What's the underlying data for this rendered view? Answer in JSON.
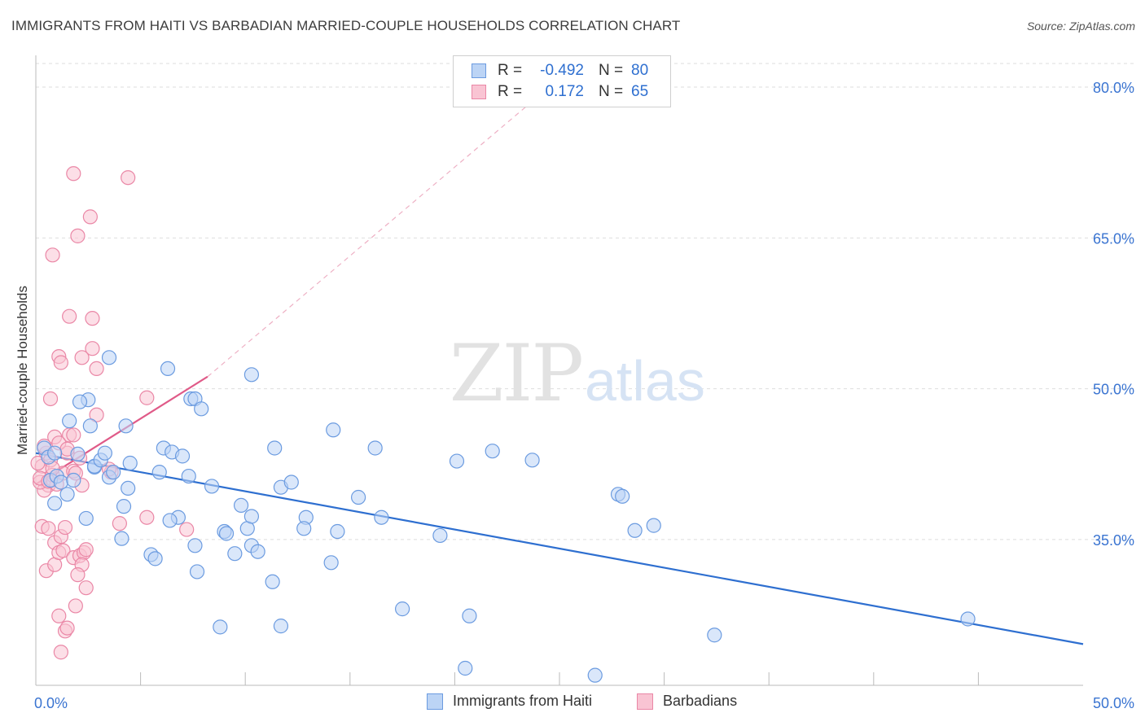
{
  "title": "IMMIGRANTS FROM HAITI VS BARBADIAN MARRIED-COUPLE HOUSEHOLDS CORRELATION CHART",
  "source": "Source: ZipAtlas.com",
  "watermark": {
    "zip": "ZIP",
    "atlas": "atlas"
  },
  "legend": {
    "rows": [
      {
        "r_label": "R =",
        "r_value": "-0.492",
        "n_label": "N =",
        "n_value": "80",
        "fill": "#bcd4f5",
        "stroke": "#6b9be0"
      },
      {
        "r_label": "R =",
        "r_value": "0.172",
        "n_label": "N =",
        "n_value": "65",
        "fill": "#f9c4d3",
        "stroke": "#ea87a6"
      }
    ]
  },
  "bottom_legend": [
    "Immigrants from Haiti",
    "Barbadians"
  ],
  "chart_data": {
    "type": "scatter",
    "title": "IMMIGRANTS FROM HAITI VS BARBADIAN MARRIED-COUPLE HOUSEHOLDS CORRELATION CHART",
    "xlabel": "",
    "ylabel": "Married-couple Households",
    "xlim": [
      0,
      50
    ],
    "ylim": [
      20.5,
      83
    ],
    "x_tick_labels": [
      {
        "value": 0,
        "label": "0.0%"
      },
      {
        "value": 50,
        "label": "50.0%"
      }
    ],
    "y_tick_labels": [
      {
        "value": 35,
        "label": "35.0%"
      },
      {
        "value": 50,
        "label": "50.0%"
      },
      {
        "value": 65,
        "label": "65.0%"
      },
      {
        "value": 80,
        "label": "80.0%"
      }
    ],
    "x_minor_ticks": [
      5,
      10,
      15,
      20,
      25,
      30,
      35,
      40,
      45
    ],
    "grid": true,
    "legend_position": "top-center",
    "series": [
      {
        "name": "Immigrants from Haiti",
        "color": "#6b9be0",
        "fill": "#bcd4f5",
        "trend": {
          "x": [
            0,
            50
          ],
          "y": [
            43.6,
            24.6
          ],
          "color": "#2e6fd0"
        },
        "points": [
          [
            0.4,
            44.1
          ],
          [
            0.6,
            43.2
          ],
          [
            0.9,
            43.6
          ],
          [
            0.7,
            40.9
          ],
          [
            1.0,
            41.3
          ],
          [
            1.2,
            40.7
          ],
          [
            1.8,
            40.9
          ],
          [
            0.9,
            38.6
          ],
          [
            1.6,
            46.8
          ],
          [
            2.5,
            48.9
          ],
          [
            2.6,
            46.3
          ],
          [
            2.1,
            48.7
          ],
          [
            2.8,
            42.2
          ],
          [
            2.8,
            42.3
          ],
          [
            3.1,
            42.9
          ],
          [
            3.3,
            43.6
          ],
          [
            2.0,
            43.5
          ],
          [
            1.5,
            39.5
          ],
          [
            2.4,
            37.1
          ],
          [
            3.5,
            41.2
          ],
          [
            3.7,
            41.7
          ],
          [
            4.2,
            38.3
          ],
          [
            4.3,
            46.3
          ],
          [
            4.1,
            35.1
          ],
          [
            4.5,
            42.6
          ],
          [
            4.4,
            40.1
          ],
          [
            6.1,
            44.1
          ],
          [
            5.9,
            41.7
          ],
          [
            6.5,
            43.7
          ],
          [
            7.0,
            43.3
          ],
          [
            5.5,
            33.5
          ],
          [
            5.7,
            33.1
          ],
          [
            7.4,
            49.0
          ],
          [
            7.6,
            49.0
          ],
          [
            7.9,
            48.0
          ],
          [
            6.8,
            37.2
          ],
          [
            7.3,
            41.3
          ],
          [
            6.4,
            36.9
          ],
          [
            7.6,
            34.4
          ],
          [
            7.7,
            31.8
          ],
          [
            8.4,
            40.3
          ],
          [
            9.0,
            35.8
          ],
          [
            9.1,
            35.6
          ],
          [
            9.8,
            38.4
          ],
          [
            10.1,
            36.1
          ],
          [
            10.3,
            37.3
          ],
          [
            10.3,
            51.4
          ],
          [
            10.3,
            34.4
          ],
          [
            10.6,
            33.8
          ],
          [
            11.7,
            40.2
          ],
          [
            11.4,
            44.1
          ],
          [
            11.3,
            30.8
          ],
          [
            12.2,
            40.7
          ],
          [
            12.9,
            37.2
          ],
          [
            12.8,
            36.1
          ],
          [
            14.2,
            45.9
          ],
          [
            14.4,
            35.8
          ],
          [
            14.1,
            32.7
          ],
          [
            15.4,
            39.2
          ],
          [
            16.2,
            44.1
          ],
          [
            16.5,
            37.2
          ],
          [
            17.5,
            28.1
          ],
          [
            19.3,
            35.4
          ],
          [
            20.1,
            42.8
          ],
          [
            20.7,
            27.4
          ],
          [
            20.5,
            22.2
          ],
          [
            21.8,
            43.8
          ],
          [
            23.7,
            42.9
          ],
          [
            26.7,
            21.5
          ],
          [
            27.8,
            39.5
          ],
          [
            28.0,
            39.3
          ],
          [
            28.6,
            35.9
          ],
          [
            29.5,
            36.4
          ],
          [
            32.4,
            25.5
          ],
          [
            44.5,
            27.1
          ],
          [
            11.7,
            26.4
          ],
          [
            8.8,
            26.3
          ],
          [
            3.5,
            53.1
          ],
          [
            6.3,
            52.0
          ],
          [
            9.5,
            33.6
          ]
        ]
      },
      {
        "name": "Barbadians",
        "color": "#ea87a6",
        "fill": "#f9c4d3",
        "trend": {
          "x": [
            0,
            8.2
          ],
          "y": [
            40.5,
            51.2
          ],
          "dashed_to": {
            "x": 26.2,
            "y": 83
          },
          "color": "#e05a88"
        },
        "points": [
          [
            0.3,
            42.3
          ],
          [
            0.5,
            43.6
          ],
          [
            0.6,
            40.4
          ],
          [
            0.8,
            41.4
          ],
          [
            1.0,
            40.5
          ],
          [
            0.4,
            44.3
          ],
          [
            0.7,
            42.9
          ],
          [
            1.3,
            41.6
          ],
          [
            1.5,
            43.6
          ],
          [
            0.9,
            45.2
          ],
          [
            1.6,
            45.4
          ],
          [
            1.8,
            41.8
          ],
          [
            1.9,
            41.6
          ],
          [
            2.1,
            43.1
          ],
          [
            0.7,
            49.0
          ],
          [
            1.1,
            53.2
          ],
          [
            1.2,
            52.6
          ],
          [
            2.2,
            53.1
          ],
          [
            2.7,
            54.0
          ],
          [
            2.9,
            52.0
          ],
          [
            1.6,
            57.2
          ],
          [
            2.7,
            57.0
          ],
          [
            2.0,
            65.2
          ],
          [
            2.6,
            67.1
          ],
          [
            0.8,
            63.3
          ],
          [
            1.8,
            71.4
          ],
          [
            4.4,
            71.0
          ],
          [
            2.9,
            47.4
          ],
          [
            1.8,
            45.4
          ],
          [
            5.3,
            49.1
          ],
          [
            3.6,
            41.7
          ],
          [
            0.3,
            36.3
          ],
          [
            0.6,
            36.1
          ],
          [
            0.9,
            34.7
          ],
          [
            1.2,
            35.3
          ],
          [
            1.4,
            36.2
          ],
          [
            0.5,
            31.9
          ],
          [
            0.9,
            32.5
          ],
          [
            1.1,
            33.7
          ],
          [
            1.3,
            33.9
          ],
          [
            1.8,
            33.2
          ],
          [
            2.1,
            33.4
          ],
          [
            2.3,
            33.7
          ],
          [
            2.2,
            32.5
          ],
          [
            2.0,
            31.5
          ],
          [
            1.9,
            28.4
          ],
          [
            2.4,
            30.2
          ],
          [
            1.1,
            27.4
          ],
          [
            1.4,
            25.9
          ],
          [
            1.5,
            26.2
          ],
          [
            1.2,
            23.8
          ],
          [
            4.0,
            36.6
          ],
          [
            7.2,
            36.0
          ],
          [
            0.4,
            39.9
          ],
          [
            0.2,
            40.7
          ],
          [
            0.2,
            41.1
          ],
          [
            0.8,
            42.1
          ],
          [
            1.1,
            44.6
          ],
          [
            1.5,
            44.0
          ],
          [
            3.5,
            42.0
          ],
          [
            2.4,
            34.0
          ],
          [
            0.1,
            42.6
          ],
          [
            0.6,
            40.8
          ],
          [
            2.2,
            40.4
          ],
          [
            5.3,
            37.2
          ]
        ]
      }
    ]
  }
}
